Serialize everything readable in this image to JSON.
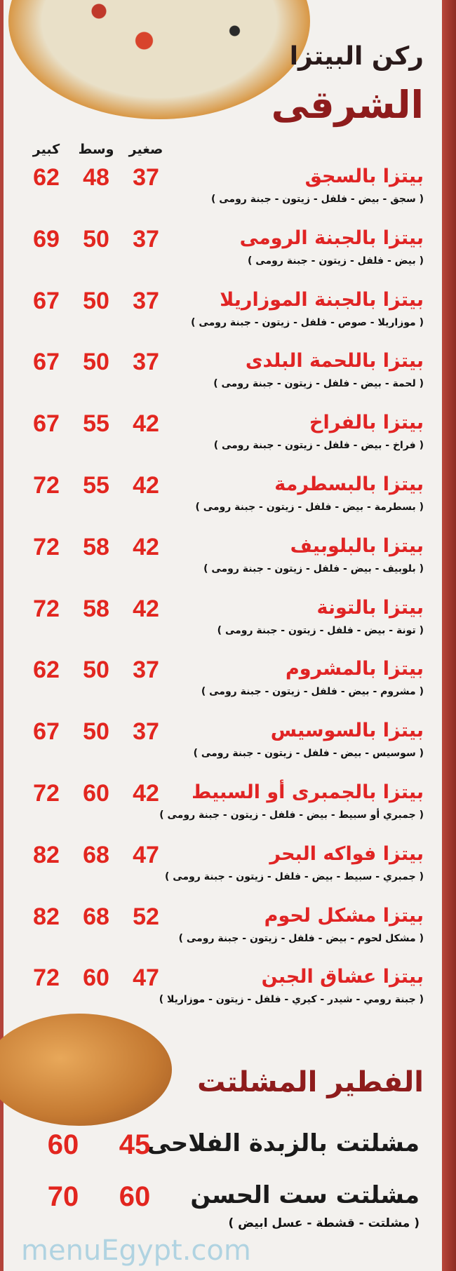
{
  "header": {
    "line1": "ركن البيتزا",
    "line2": "الشرقى"
  },
  "size_headers": [
    "صغير",
    "وسط",
    "كبير"
  ],
  "pizzas": [
    {
      "name": "بيتزا بالسجق",
      "desc": "( سجق - بيض - فلفل - زيتون - جبنة رومى )",
      "prices": [
        37,
        48,
        62
      ]
    },
    {
      "name": "بيتزا بالجبنة الرومى",
      "desc": "( بيض - فلفل - زيتون - جبنة رومى )",
      "prices": [
        37,
        50,
        69
      ]
    },
    {
      "name": "بيتزا بالجبنة الموزاريلا",
      "desc": "( موزاريلا - صوص - فلفل - زيتون - جبنة رومى )",
      "prices": [
        37,
        50,
        67
      ]
    },
    {
      "name": "بيتزا باللحمة البلدى",
      "desc": "( لحمة - بيض - فلفل - زيتون - جبنة رومى )",
      "prices": [
        37,
        50,
        67
      ]
    },
    {
      "name": "بيتزا بالفراخ",
      "desc": "( فراخ - بيض - فلفل - زيتون - جبنة رومى )",
      "prices": [
        42,
        55,
        67
      ]
    },
    {
      "name": "بيتزا بالبسطرمة",
      "desc": "( بسطرمة - بيض - فلفل - زيتون - جبنة رومى )",
      "prices": [
        42,
        55,
        72
      ]
    },
    {
      "name": "بيتزا بالبلوبيف",
      "desc": "( بلوبيف - بيض - فلفل - زيتون - جبنة رومى )",
      "prices": [
        42,
        58,
        72
      ]
    },
    {
      "name": "بيتزا بالتونة",
      "desc": "( تونة - بيض - فلفل - زيتون - جبنة رومى )",
      "prices": [
        42,
        58,
        72
      ]
    },
    {
      "name": "بيتزا بالمشروم",
      "desc": "( مشروم - بيض - فلفل - زيتون - جبنة رومى )",
      "prices": [
        37,
        50,
        62
      ]
    },
    {
      "name": "بيتزا بالسوسيس",
      "desc": "( سوسيس - بيض - فلفل - زيتون - جبنة رومى )",
      "prices": [
        37,
        50,
        67
      ]
    },
    {
      "name": "بيتزا بالجمبرى أو السبيط",
      "desc": "( جمبري أو سبيط - بيض - فلفل - زيتون - جبنة رومى )",
      "prices": [
        42,
        60,
        72
      ]
    },
    {
      "name": "بيتزا فواكه البحر",
      "desc": "( جمبري - سبيط - بيض - فلفل - زيتون - جبنة رومى )",
      "prices": [
        47,
        68,
        82
      ]
    },
    {
      "name": "بيتزا مشكل لحوم",
      "desc": "( مشكل لحوم - بيض - فلفل - زيتون - جبنة رومى )",
      "prices": [
        52,
        68,
        82
      ]
    },
    {
      "name": "بيتزا عشاق الجبن",
      "desc": "( جبنة رومي - شيدر - كيري - فلفل - زيتون - موزاريلا )",
      "prices": [
        47,
        60,
        72
      ]
    }
  ],
  "fateer": {
    "title": "الفطير المشلتت",
    "items": [
      {
        "name": "مشلتت بالزبدة الفلاحى",
        "desc": "",
        "prices": [
          45,
          60
        ]
      },
      {
        "name": "مشلتت ست الحسن",
        "desc": "( مشلتت - قشطة - عسل ابيض )",
        "prices": [
          60,
          70
        ]
      }
    ]
  },
  "watermark": "menuEgypt.com",
  "colors": {
    "item_name": "#e02424",
    "price": "#e2261f",
    "title": "#8e1c1c",
    "border": "#a83a30"
  }
}
